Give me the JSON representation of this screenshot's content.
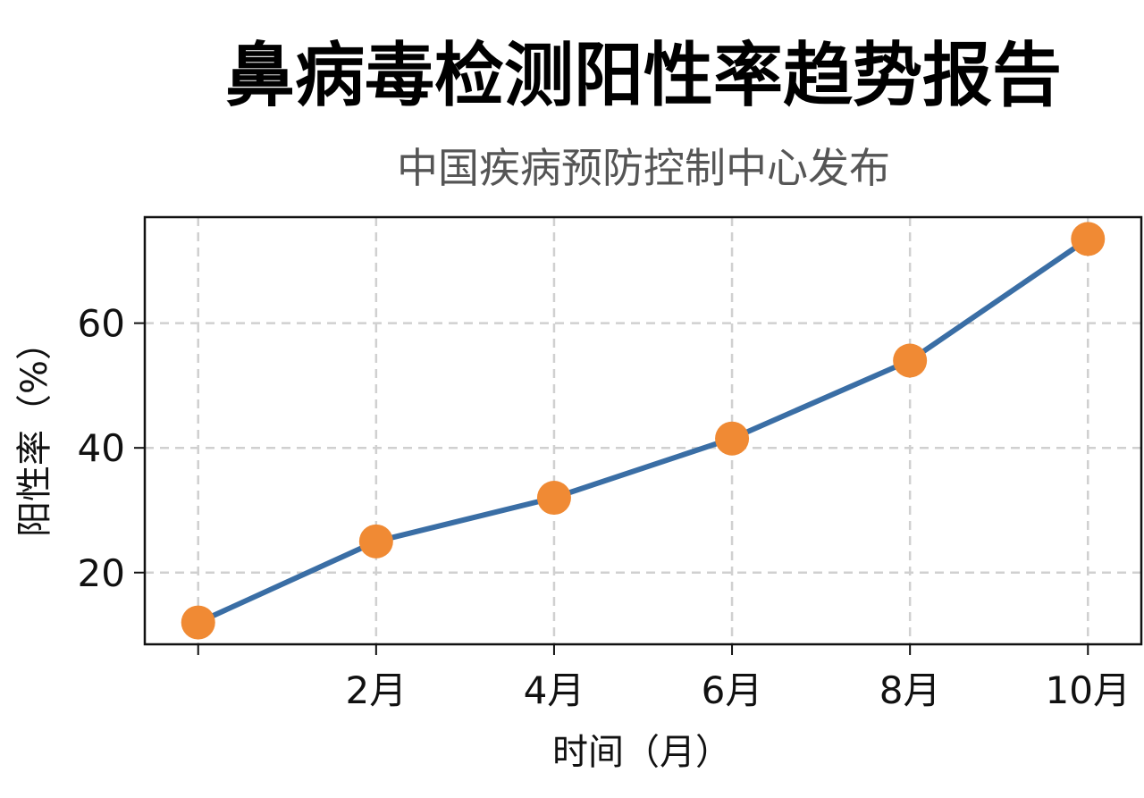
{
  "title": "鼻病毒检测阳性率趋势报告",
  "subtitle": "中国疾病预防控制中心发布",
  "colors": {
    "line": "#3a6ea5",
    "marker": "#f08a34",
    "grid": "#d0d0d0"
  },
  "chart_data": {
    "type": "line",
    "xlabel": "时间（月）",
    "ylabel": "阳性率（%）",
    "x": [
      0,
      2,
      4,
      6,
      8,
      10
    ],
    "x_tick_values": [
      2,
      4,
      6,
      8,
      10
    ],
    "x_tick_labels": [
      "2月",
      "4月",
      "6月",
      "8月",
      "10月"
    ],
    "y_tick_values": [
      20,
      40,
      60
    ],
    "y_tick_labels": [
      "20",
      "40",
      "60"
    ],
    "xlim": [
      -0.6,
      10.6
    ],
    "ylim": [
      8.5,
      77
    ],
    "grid": true,
    "series": [
      {
        "values": [
          12,
          25,
          32,
          41.5,
          54,
          73.5
        ]
      }
    ]
  }
}
